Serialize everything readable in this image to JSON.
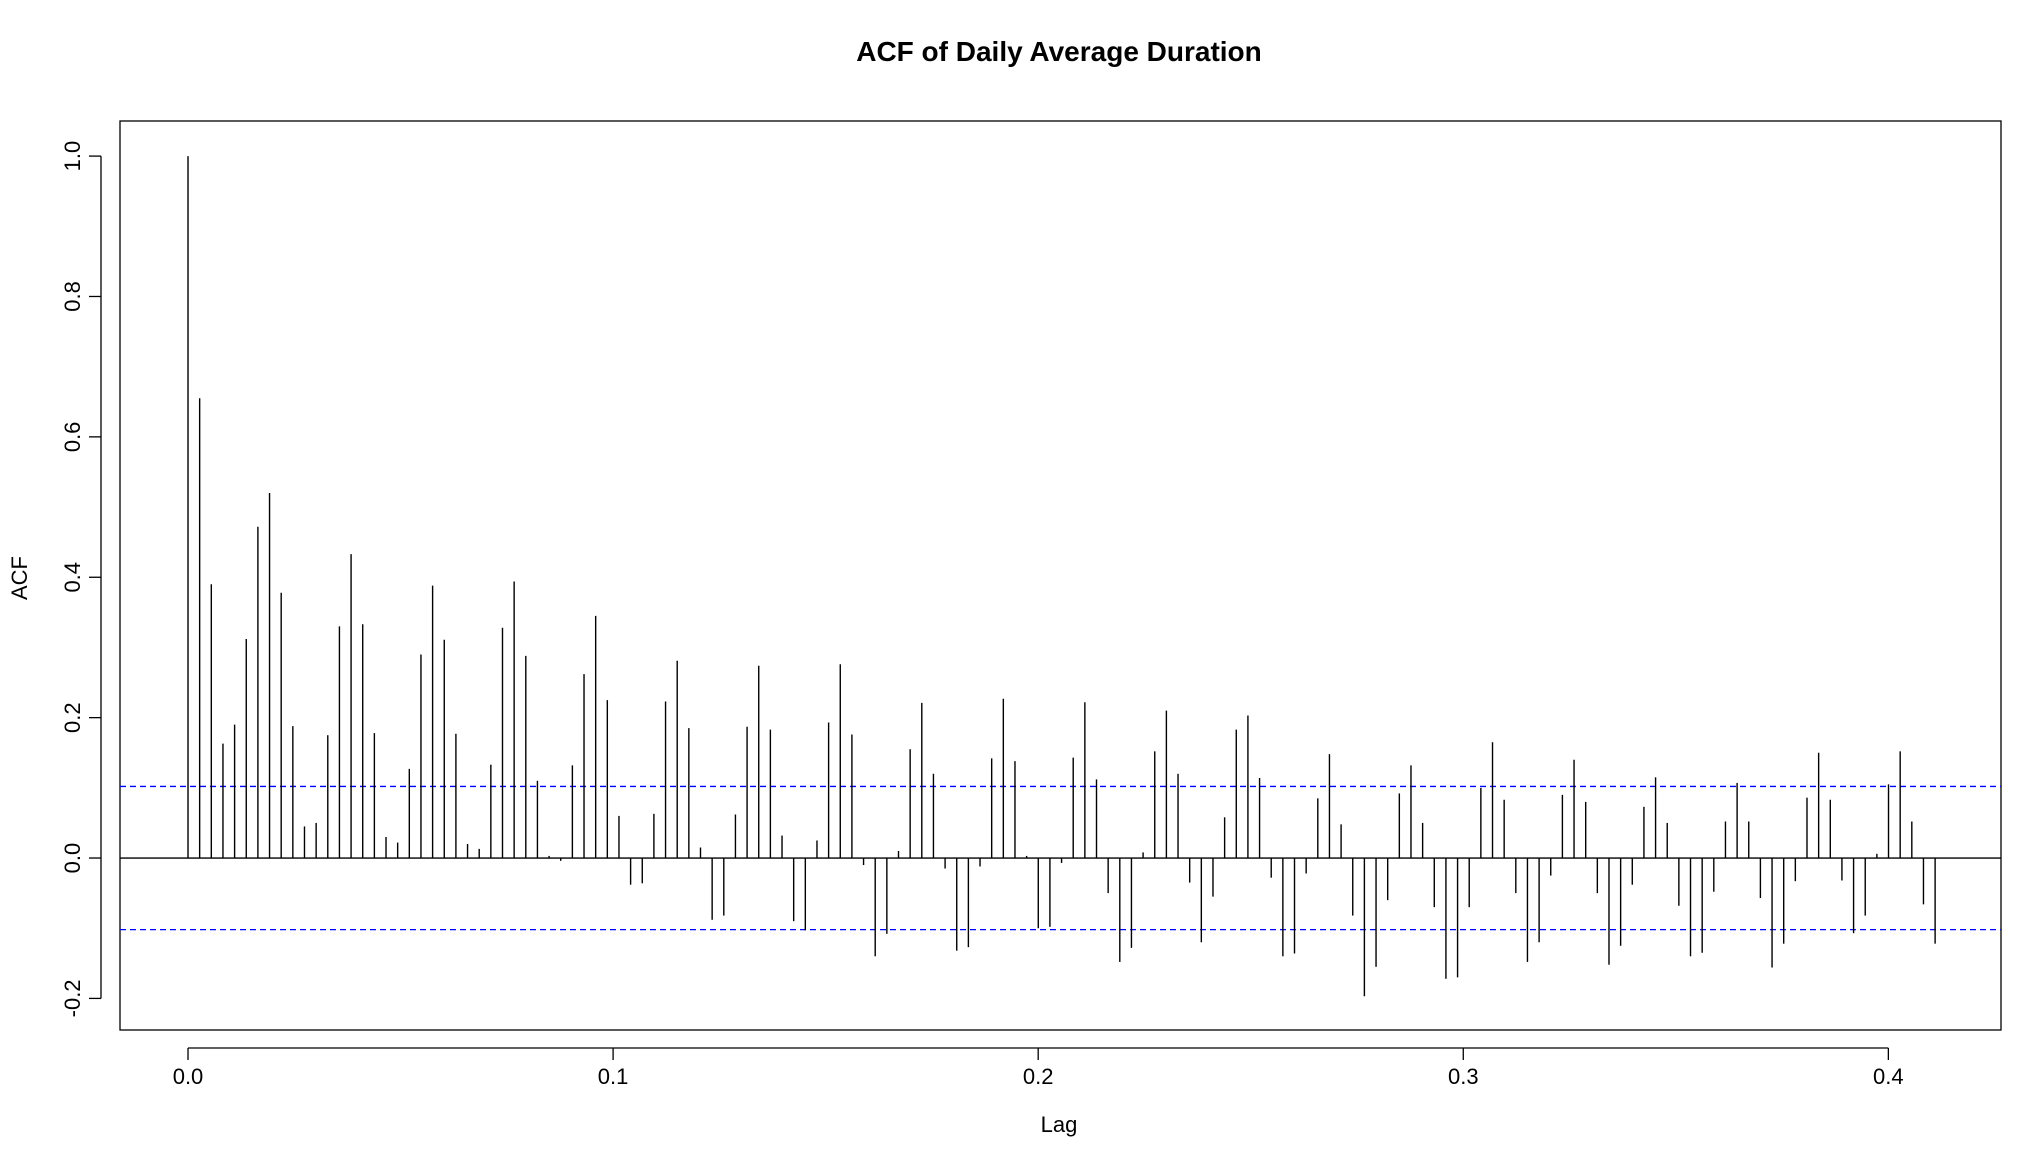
{
  "chart_data": {
    "type": "bar",
    "title": "ACF of Daily Average Duration",
    "xlabel": "Lag",
    "ylabel": "ACF",
    "xlim": [
      -0.016,
      0.4265
    ],
    "ylim": [
      -0.245,
      1.05
    ],
    "xticks": [
      "0.0",
      "0.1",
      "0.2",
      "0.3",
      "0.4"
    ],
    "xtick_values": [
      0.0,
      0.1,
      0.2,
      0.3,
      0.4
    ],
    "yticks": [
      "-0.2",
      "0.0",
      "0.2",
      "0.4",
      "0.6",
      "0.8",
      "1.0"
    ],
    "ytick_values": [
      -0.2,
      0.0,
      0.2,
      0.4,
      0.6,
      0.8,
      1.0
    ],
    "lag_step": 0.00274,
    "confidence_bound": 0.102,
    "colors": {
      "bars": "#000000",
      "confidence": "#0000ff",
      "zero_line": "#000000",
      "frame": "#000000"
    },
    "acf_values": [
      1.0,
      0.655,
      0.39,
      0.163,
      0.19,
      0.312,
      0.472,
      0.52,
      0.378,
      0.188,
      0.045,
      0.05,
      0.175,
      0.33,
      0.433,
      0.333,
      0.178,
      0.03,
      0.022,
      0.127,
      0.29,
      0.388,
      0.311,
      0.177,
      0.02,
      0.013,
      0.133,
      0.328,
      0.394,
      0.288,
      0.11,
      0.003,
      -0.004,
      0.132,
      0.262,
      0.345,
      0.225,
      0.06,
      -0.038,
      -0.036,
      0.063,
      0.223,
      0.281,
      0.185,
      0.015,
      -0.088,
      -0.082,
      0.062,
      0.187,
      0.274,
      0.183,
      0.032,
      -0.09,
      -0.103,
      0.025,
      0.193,
      0.276,
      0.176,
      -0.01,
      -0.14,
      -0.108,
      0.01,
      0.155,
      0.221,
      0.12,
      -0.015,
      -0.132,
      -0.127,
      -0.012,
      0.142,
      0.227,
      0.138,
      0.003,
      -0.1,
      -0.098,
      -0.007,
      0.143,
      0.222,
      0.112,
      -0.05,
      -0.148,
      -0.128,
      0.008,
      0.152,
      0.21,
      0.12,
      -0.035,
      -0.12,
      -0.055,
      0.058,
      0.183,
      0.203,
      0.114,
      -0.028,
      -0.14,
      -0.136,
      -0.022,
      0.085,
      0.148,
      0.048,
      -0.082,
      -0.197,
      -0.155,
      -0.06,
      0.092,
      0.132,
      0.05,
      -0.07,
      -0.172,
      -0.17,
      -0.07,
      0.1,
      0.165,
      0.083,
      -0.05,
      -0.148,
      -0.12,
      -0.025,
      0.09,
      0.14,
      0.08,
      -0.05,
      -0.152,
      -0.125,
      -0.038,
      0.073,
      0.115,
      0.05,
      -0.068,
      -0.14,
      -0.135,
      -0.048,
      0.052,
      0.107,
      0.052,
      -0.057,
      -0.156,
      -0.122,
      -0.033,
      0.086,
      0.15,
      0.083,
      -0.032,
      -0.107,
      -0.082,
      0.006,
      0.105,
      0.152,
      0.052,
      -0.066,
      -0.122
    ]
  }
}
